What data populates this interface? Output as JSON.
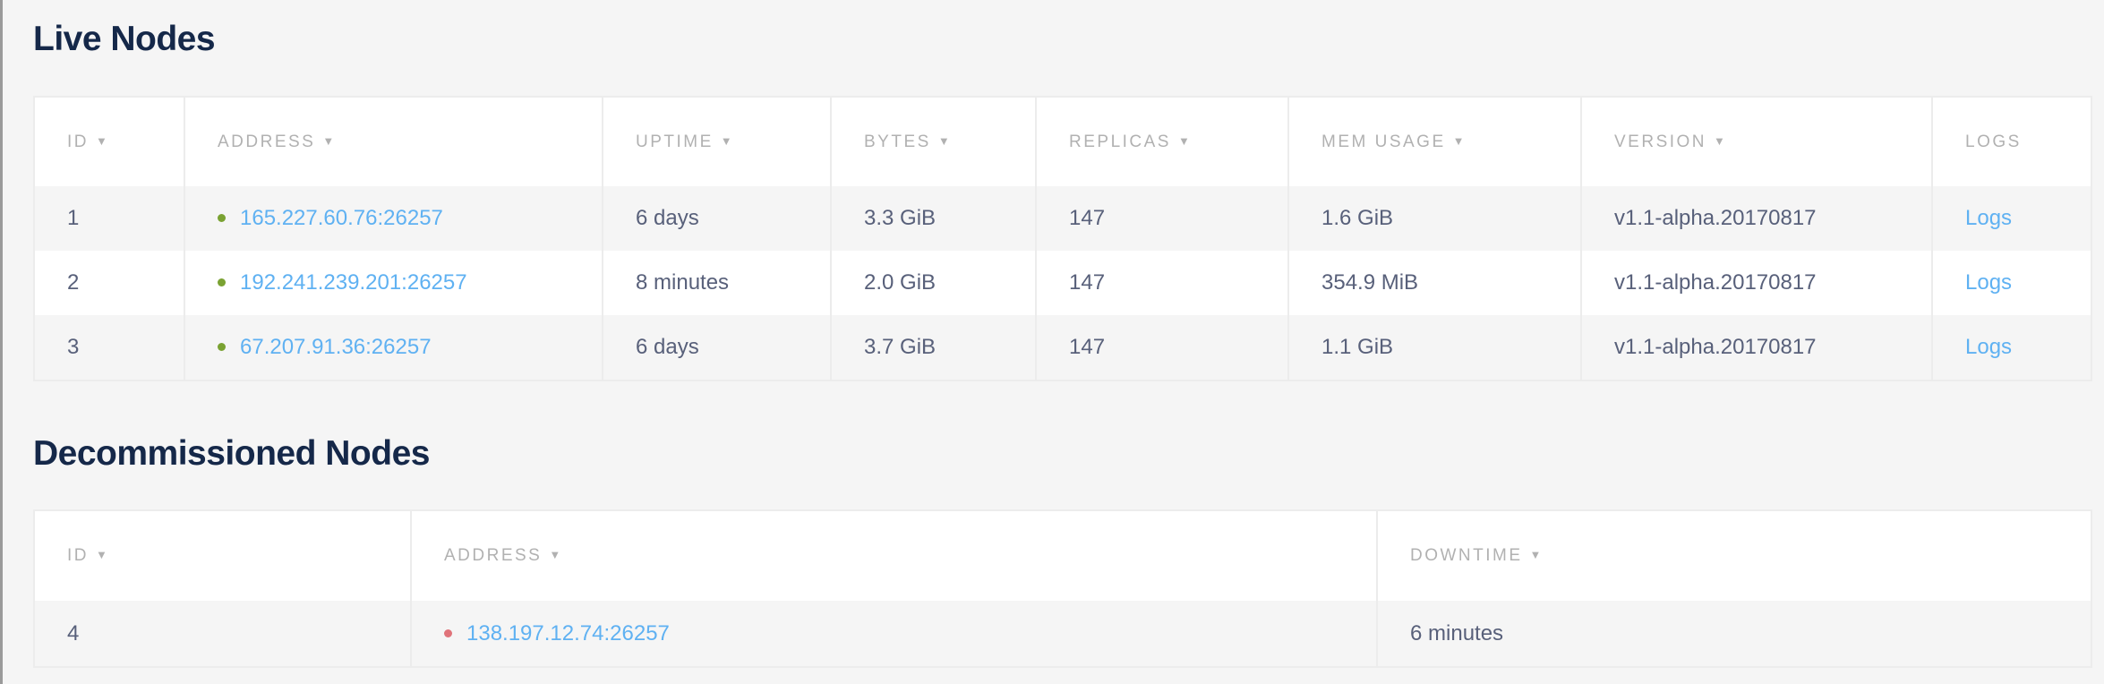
{
  "live": {
    "title": "Live Nodes",
    "columns": [
      {
        "label": "ID",
        "sortable": true
      },
      {
        "label": "ADDRESS",
        "sortable": true
      },
      {
        "label": "UPTIME",
        "sortable": true
      },
      {
        "label": "BYTES",
        "sortable": true
      },
      {
        "label": "REPLICAS",
        "sortable": true
      },
      {
        "label": "MEM USAGE",
        "sortable": true
      },
      {
        "label": "VERSION",
        "sortable": true
      },
      {
        "label": "LOGS",
        "sortable": false
      }
    ],
    "sort_caret": "▼",
    "rows": [
      {
        "id": "1",
        "address": "165.227.60.76:26257",
        "uptime": "6 days",
        "bytes": "3.3 GiB",
        "replicas": "147",
        "mem": "1.6 GiB",
        "version": "v1.1-alpha.20170817",
        "logs": "Logs",
        "status": "live"
      },
      {
        "id": "2",
        "address": "192.241.239.201:26257",
        "uptime": "8 minutes",
        "bytes": "2.0 GiB",
        "replicas": "147",
        "mem": "354.9 MiB",
        "version": "v1.1-alpha.20170817",
        "logs": "Logs",
        "status": "live"
      },
      {
        "id": "3",
        "address": "67.207.91.36:26257",
        "uptime": "6 days",
        "bytes": "3.7 GiB",
        "replicas": "147",
        "mem": "1.1 GiB",
        "version": "v1.1-alpha.20170817",
        "logs": "Logs",
        "status": "live"
      }
    ]
  },
  "decommissioned": {
    "title": "Decommissioned Nodes",
    "columns": [
      {
        "label": "ID",
        "sortable": true
      },
      {
        "label": "ADDRESS",
        "sortable": true
      },
      {
        "label": "DOWNTIME",
        "sortable": true
      }
    ],
    "rows": [
      {
        "id": "4",
        "address": "138.197.12.74:26257",
        "downtime": "6 minutes",
        "status": "dead"
      }
    ]
  },
  "colors": {
    "title": "#152849",
    "link": "#5fb1f2",
    "live_dot": "#7aa232",
    "dead_dot": "#e0737a",
    "text": "#58607a",
    "header_text": "#b1b1b1"
  }
}
